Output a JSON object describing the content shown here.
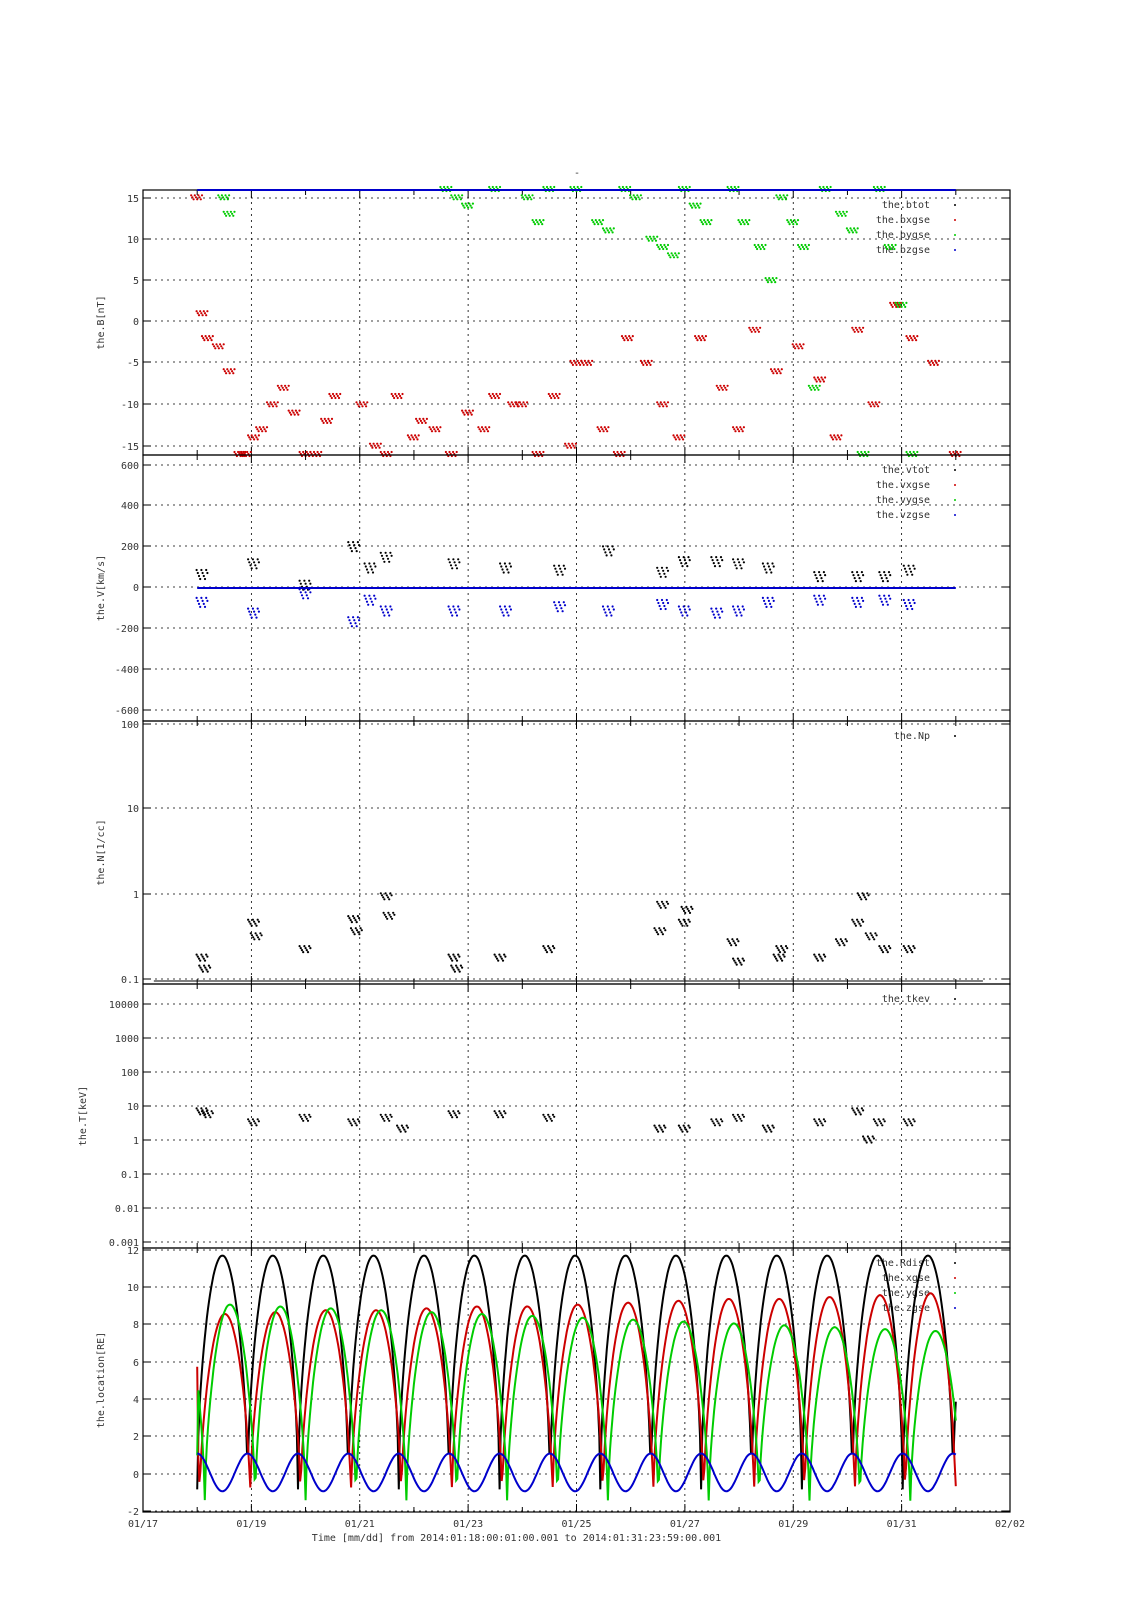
{
  "figure": {
    "top_mark": "-",
    "xlabel": "Time [mm/dd]  from 2014:01:18:00:01:00.001  to  2014:01:31:23:59:00.001",
    "x_ticks": [
      "01/17",
      "01/19",
      "01/21",
      "01/23",
      "01/25",
      "01/27",
      "01/29",
      "01/31",
      "02/02"
    ]
  },
  "chart_data": [
    {
      "type": "scatter",
      "ylabel": "the.B[nT]",
      "ylim": [
        -16,
        16
      ],
      "y_ticks": [
        "15",
        "10",
        "5",
        "0",
        "-5",
        "-10",
        "-15"
      ],
      "xlim": [
        0,
        16
      ],
      "grid": true,
      "legend_placement": "top-right",
      "series": [
        {
          "name": "the.btot",
          "color": "#000000",
          "values": []
        },
        {
          "name": "the.bxgse",
          "color": "#cc0000",
          "x": [
            1.0,
            1.1,
            1.2,
            1.4,
            1.6,
            1.8,
            1.9,
            2.05,
            2.2,
            2.4,
            2.6,
            2.8,
            3.0,
            3.2,
            3.4,
            3.55,
            4.05,
            4.3,
            4.5,
            4.7,
            5.0,
            5.15,
            5.4,
            5.7,
            6.0,
            6.3,
            6.5,
            6.85,
            7.0,
            7.3,
            7.6,
            7.9,
            8.0,
            8.2,
            8.5,
            8.8,
            8.95,
            9.3,
            9.6,
            9.9,
            10.3,
            10.7,
            11.0,
            11.3,
            11.7,
            12.1,
            12.5,
            12.8,
            13.2,
            13.5,
            13.9,
            14.2,
            14.6,
            15.0
          ],
          "values": [
            15,
            1,
            -2,
            -3,
            -6,
            -16,
            -16,
            -14,
            -13,
            -10,
            -8,
            -11,
            -16,
            -16,
            -12,
            -9,
            -10,
            -15,
            -16,
            -9,
            -14,
            -12,
            -13,
            -16,
            -11,
            -13,
            -9,
            -10,
            -10,
            -16,
            -9,
            -15,
            -5,
            -5,
            -13,
            -16,
            -2,
            -5,
            -10,
            -14,
            -2,
            -8,
            -13,
            -1,
            -6,
            -3,
            -7,
            -14,
            -1,
            -10,
            2,
            -2,
            -5,
            -16
          ]
        },
        {
          "name": "the.bygse",
          "color": "#00cc00",
          "x": [
            1.5,
            1.6,
            5.6,
            5.8,
            6.0,
            6.5,
            7.1,
            7.3,
            7.5,
            8.0,
            8.4,
            8.6,
            8.9,
            9.1,
            9.4,
            9.6,
            9.8,
            10.0,
            10.2,
            10.4,
            10.9,
            11.1,
            11.4,
            11.6,
            11.8,
            12.0,
            12.2,
            12.4,
            12.6,
            12.9,
            13.1,
            13.3,
            13.6,
            13.8,
            14.0,
            14.2
          ],
          "values": [
            15,
            13,
            16,
            15,
            14,
            16,
            15,
            12,
            16,
            16,
            12,
            11,
            16,
            15,
            10,
            9,
            8,
            16,
            14,
            12,
            16,
            12,
            9,
            5,
            15,
            12,
            9,
            -8,
            16,
            13,
            11,
            -16,
            16,
            9,
            2,
            -16
          ]
        },
        {
          "name": "the.bzgse",
          "color": "#0000cc",
          "values": [
            16,
            16,
            16,
            16
          ]
        }
      ]
    },
    {
      "type": "scatter",
      "ylabel": "the.V[km/s]",
      "ylim": [
        -620,
        620
      ],
      "y_ticks": [
        "600",
        "400",
        "200",
        "0",
        "-200",
        "-400",
        "-600"
      ],
      "xlim": [
        0,
        16
      ],
      "grid": true,
      "legend_placement": "top-right",
      "series": [
        {
          "name": "the.vtot",
          "color": "#000000",
          "x": [
            1.1,
            2.05,
            3.0,
            3.9,
            4.2,
            4.5,
            5.75,
            6.7,
            7.7,
            8.6,
            9.6,
            10.0,
            10.6,
            11.0,
            11.55,
            12.5,
            13.2,
            13.7,
            14.15
          ],
          "values": [
            70,
            120,
            20,
            200,
            100,
            150,
            120,
            100,
            90,
            180,
            80,
            130,
            130,
            120,
            100,
            60,
            60,
            60,
            90
          ]
        },
        {
          "name": "the.vxgse",
          "color": "#cc0000",
          "values": [
            5,
            5,
            5
          ]
        },
        {
          "name": "the.vygse",
          "color": "#00cc00",
          "values": [
            15,
            20,
            30,
            20,
            25,
            20
          ]
        },
        {
          "name": "the.vzgse",
          "color": "#0000cc",
          "x": [
            1.1,
            2.05,
            3.0,
            3.9,
            4.2,
            4.5,
            5.75,
            6.7,
            7.7,
            8.6,
            9.6,
            10.0,
            10.6,
            11.0,
            11.55,
            12.5,
            13.2,
            13.7,
            14.15
          ],
          "values": [
            -60,
            -110,
            -20,
            -150,
            -50,
            -100,
            -100,
            -100,
            -80,
            -100,
            -70,
            -100,
            -110,
            -100,
            -60,
            -50,
            -60,
            -50,
            -70
          ]
        }
      ]
    },
    {
      "type": "scatter",
      "ylabel": "the.N[1/cc]",
      "ylim": [
        0.1,
        100
      ],
      "log_y": true,
      "y_ticks": [
        "100",
        "10",
        "1",
        "0.1"
      ],
      "xlim": [
        0,
        16
      ],
      "grid": true,
      "legend_placement": "top-right",
      "series": [
        {
          "name": "the.Np",
          "color": "#000000",
          "x": [
            1.1,
            1.15,
            2.05,
            2.1,
            3.0,
            3.9,
            3.95,
            4.5,
            4.55,
            5.75,
            5.8,
            6.6,
            7.5,
            9.55,
            9.6,
            10.0,
            10.05,
            10.9,
            11.0,
            11.75,
            11.8,
            12.5,
            12.9,
            13.2,
            13.3,
            13.45,
            13.7,
            14.15
          ],
          "values": [
            0.2,
            0.15,
            0.5,
            0.35,
            0.25,
            0.55,
            0.4,
            1.0,
            0.6,
            0.2,
            0.15,
            0.2,
            0.25,
            0.4,
            0.8,
            0.5,
            0.7,
            0.3,
            0.18,
            0.2,
            0.25,
            0.2,
            0.3,
            0.5,
            1.0,
            0.35,
            0.25,
            0.25
          ]
        }
      ]
    },
    {
      "type": "scatter",
      "ylabel": "the.T[keV]",
      "ylim": [
        0.001,
        20000
      ],
      "log_y": true,
      "y_ticks": [
        "10000",
        "1000",
        "100",
        "10",
        "1",
        "0.1",
        "0.01",
        "0.001"
      ],
      "xlim": [
        0,
        16
      ],
      "grid": true,
      "legend_placement": "top-right",
      "series": [
        {
          "name": "the.tkev",
          "color": "#000000",
          "x": [
            1.1,
            1.2,
            2.05,
            3.0,
            3.9,
            4.5,
            4.8,
            5.75,
            6.6,
            7.5,
            9.55,
            10.0,
            10.6,
            11.0,
            11.55,
            12.5,
            13.2,
            13.4,
            13.6,
            14.15
          ],
          "values": [
            6,
            5,
            3,
            4,
            3,
            4,
            2,
            5,
            5,
            4,
            2,
            2,
            3,
            4,
            2,
            3,
            6,
            1,
            3,
            3
          ]
        }
      ]
    },
    {
      "type": "line",
      "ylabel": "the.location[RE]",
      "ylim": [
        -2,
        12
      ],
      "y_ticks": [
        "12",
        "10",
        "8",
        "6",
        "4",
        "2",
        "0",
        "-2"
      ],
      "xlim": [
        0,
        16
      ],
      "grid": true,
      "legend_placement": "top-right",
      "orbit_period": 0.93,
      "orbit_start": 1.0,
      "orbit_end": 15.0,
      "series": [
        {
          "name": "the.Rdist",
          "color": "#000000",
          "peak": 11.6,
          "low": -0.8,
          "values": [
            11.6,
            11.6,
            11.6,
            11.6,
            11.6,
            11.6,
            11.6,
            11.6,
            11.6,
            11.6,
            11.6,
            11.6,
            11.6,
            11.6,
            11.6
          ]
        },
        {
          "name": "the.xgse",
          "color": "#cc0000",
          "peak_start": 8.5,
          "peak_end": 9.6,
          "values": [
            8.5,
            8.6,
            8.7,
            8.7,
            8.8,
            8.9,
            8.9,
            9.0,
            9.1,
            9.2,
            9.3,
            9.3,
            9.4,
            9.5,
            9.6
          ]
        },
        {
          "name": "the.ygse",
          "color": "#00cc00",
          "peak_start": 9.0,
          "peak_end": 7.6,
          "values": [
            9.0,
            8.9,
            8.8,
            8.7,
            8.6,
            8.5,
            8.4,
            8.3,
            8.2,
            8.1,
            8.0,
            7.9,
            7.8,
            7.7,
            7.6
          ]
        },
        {
          "name": "the.zgse",
          "color": "#0000cc",
          "amplitude_high": 1.1,
          "amplitude_low": -0.9,
          "values": [
            1.1,
            1.1,
            1.1,
            1.1,
            1.1,
            1.1,
            1.1,
            1.1,
            1.1,
            1.1,
            1.1,
            1.1,
            1.1,
            1.1,
            1.1
          ]
        }
      ]
    }
  ]
}
